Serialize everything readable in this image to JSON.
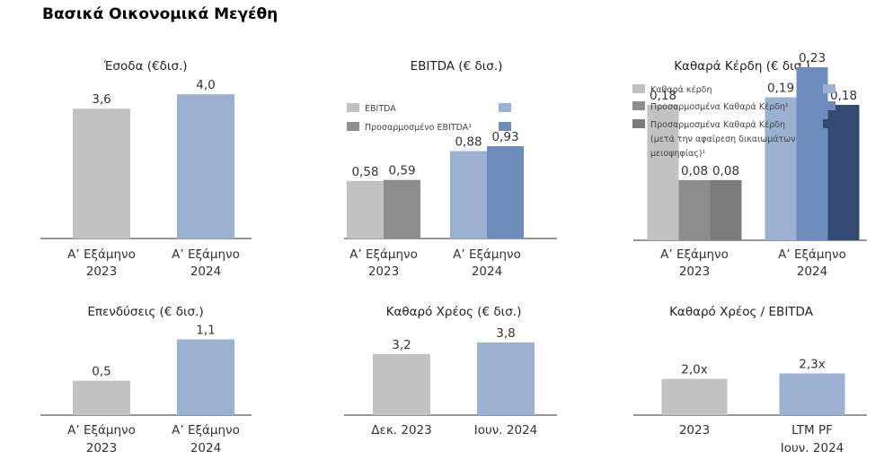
{
  "page": {
    "title": "Βασικά Οικονομικά Μεγέθη"
  },
  "colors": {
    "grey_light": "#c2c2c2",
    "grey_mid": "#8d8d8d",
    "grey_dark": "#7b7b7b",
    "blue_light": "#9cb0d1",
    "blue_mid": "#6d8cbd",
    "blue_dark": "#334a72",
    "axis": "#595959"
  },
  "chart_data": [
    {
      "id": "revenue",
      "type": "bar",
      "title": "Έσοδα (€δισ.)",
      "categories": [
        [
          "Α’ Εξάμηνο",
          "2023"
        ],
        [
          "Α’ Εξάμηνο",
          "2024"
        ]
      ],
      "series": [
        {
          "values": [
            3.6,
            4.0
          ],
          "labels": [
            "3,6",
            "4,0"
          ],
          "colors": [
            "#c2c2c2",
            "#9cb0d1"
          ]
        }
      ],
      "ylim": [
        0,
        4.6
      ]
    },
    {
      "id": "ebitda",
      "type": "bar",
      "title": "EBITDA (€ δισ.)",
      "categories": [
        [
          "Α’ Εξάμηνο",
          "2023"
        ],
        [
          "Α’ Εξάμηνο",
          "2024"
        ]
      ],
      "series": [
        {
          "name": "EBITDA",
          "values": [
            0.58,
            0.88
          ],
          "labels": [
            "0,58",
            "0,88"
          ],
          "colors": [
            "#c2c2c2",
            "#9cb0d1"
          ]
        },
        {
          "name": "Προσαρμοσμένο EBITDA¹",
          "values": [
            0.59,
            0.93
          ],
          "labels": [
            "0,59",
            "0,93"
          ],
          "colors": [
            "#8d8d8d",
            "#6d8cbd"
          ]
        }
      ],
      "legend": [
        {
          "text": "EBITDA",
          "color_2023": "#c2c2c2",
          "color_2024": "#9cb0d1"
        },
        {
          "text": "Προσαρμοσμένο EBITDA¹",
          "color_2023": "#8d8d8d",
          "color_2024": "#6d8cbd"
        }
      ],
      "legend_position": "top",
      "ylim": [
        0,
        1.4
      ]
    },
    {
      "id": "net_profit",
      "type": "bar",
      "title": "Καθαρά Κέρδη (€ δισ.)",
      "categories": [
        [
          "Α’ Εξάμηνο",
          "2023"
        ],
        [
          "Α’ Εξάμηνο",
          "2024"
        ]
      ],
      "series": [
        {
          "name": "Καθαρά κέρδη",
          "values": [
            0.18,
            0.19
          ],
          "labels": [
            "0,18",
            "0,19"
          ],
          "colors": [
            "#c2c2c2",
            "#9cb0d1"
          ]
        },
        {
          "name": "Προσαρμοσμένα Καθαρά Κέρδη¹",
          "values": [
            0.08,
            0.23
          ],
          "labels": [
            "0,08",
            "0,23"
          ],
          "colors": [
            "#8d8d8d",
            "#6d8cbd"
          ]
        },
        {
          "name": "Προσαρμοσμένα Καθαρά Κέρδη (μετά την αφαίρεση δικαιωμάτων μειοψηφίας)¹",
          "values": [
            0.08,
            0.18
          ],
          "labels": [
            "0,08",
            "0,18"
          ],
          "colors": [
            "#7b7b7b",
            "#334a72"
          ]
        }
      ],
      "legend": [
        {
          "lines": [
            "Καθαρά κέρδη"
          ],
          "color_2023": "#c2c2c2",
          "color_2024": "#9cb0d1"
        },
        {
          "lines": [
            "Προσαρμοσμένα Καθαρά Κέρδη¹"
          ],
          "color_2023": "#8d8d8d",
          "color_2024": "#6d8cbd"
        },
        {
          "lines": [
            "Προσαρμοσμένα Καθαρά Κέρδη",
            "(μετά την αφαίρεση δικαιωμάτων",
            "μειοψηφίας)¹"
          ],
          "color_2023": "#7b7b7b",
          "color_2024": "#334a72"
        }
      ],
      "legend_position": "top",
      "ylim": [
        0,
        0.28
      ]
    },
    {
      "id": "investments",
      "type": "bar",
      "title": "Επενδύσεις (€ δισ.)",
      "categories": [
        [
          "Α’ Εξάμηνο",
          "2023"
        ],
        [
          "Α’ Εξάμηνο",
          "2024"
        ]
      ],
      "series": [
        {
          "values": [
            0.5,
            1.1
          ],
          "labels": [
            "0,5",
            "1,1"
          ],
          "colors": [
            "#c2c2c2",
            "#9cb0d1"
          ]
        }
      ],
      "ylim": [
        0,
        1.25
      ]
    },
    {
      "id": "net_debt",
      "type": "bar",
      "title": "Καθαρό Χρέος (€ δισ.)",
      "categories": [
        [
          "Δεκ. 2023"
        ],
        [
          "Ιουν. 2024"
        ]
      ],
      "series": [
        {
          "values": [
            3.2,
            3.8
          ],
          "labels": [
            "3,2",
            "3,8"
          ],
          "colors": [
            "#c2c2c2",
            "#9cb0d1"
          ]
        }
      ],
      "ylim": [
        0,
        4.6
      ]
    },
    {
      "id": "net_debt_ebitda",
      "type": "bar",
      "title": "Καθαρό Χρέος / EBITDA",
      "categories": [
        [
          "2023"
        ],
        [
          "LTM PF",
          "Ιουν. 2024"
        ]
      ],
      "series": [
        {
          "values": [
            2.0,
            2.3
          ],
          "labels": [
            "2,0x",
            "2,3x"
          ],
          "colors": [
            "#c2c2c2",
            "#9cb0d1"
          ]
        }
      ],
      "ylim": [
        0,
        4.6
      ]
    }
  ]
}
